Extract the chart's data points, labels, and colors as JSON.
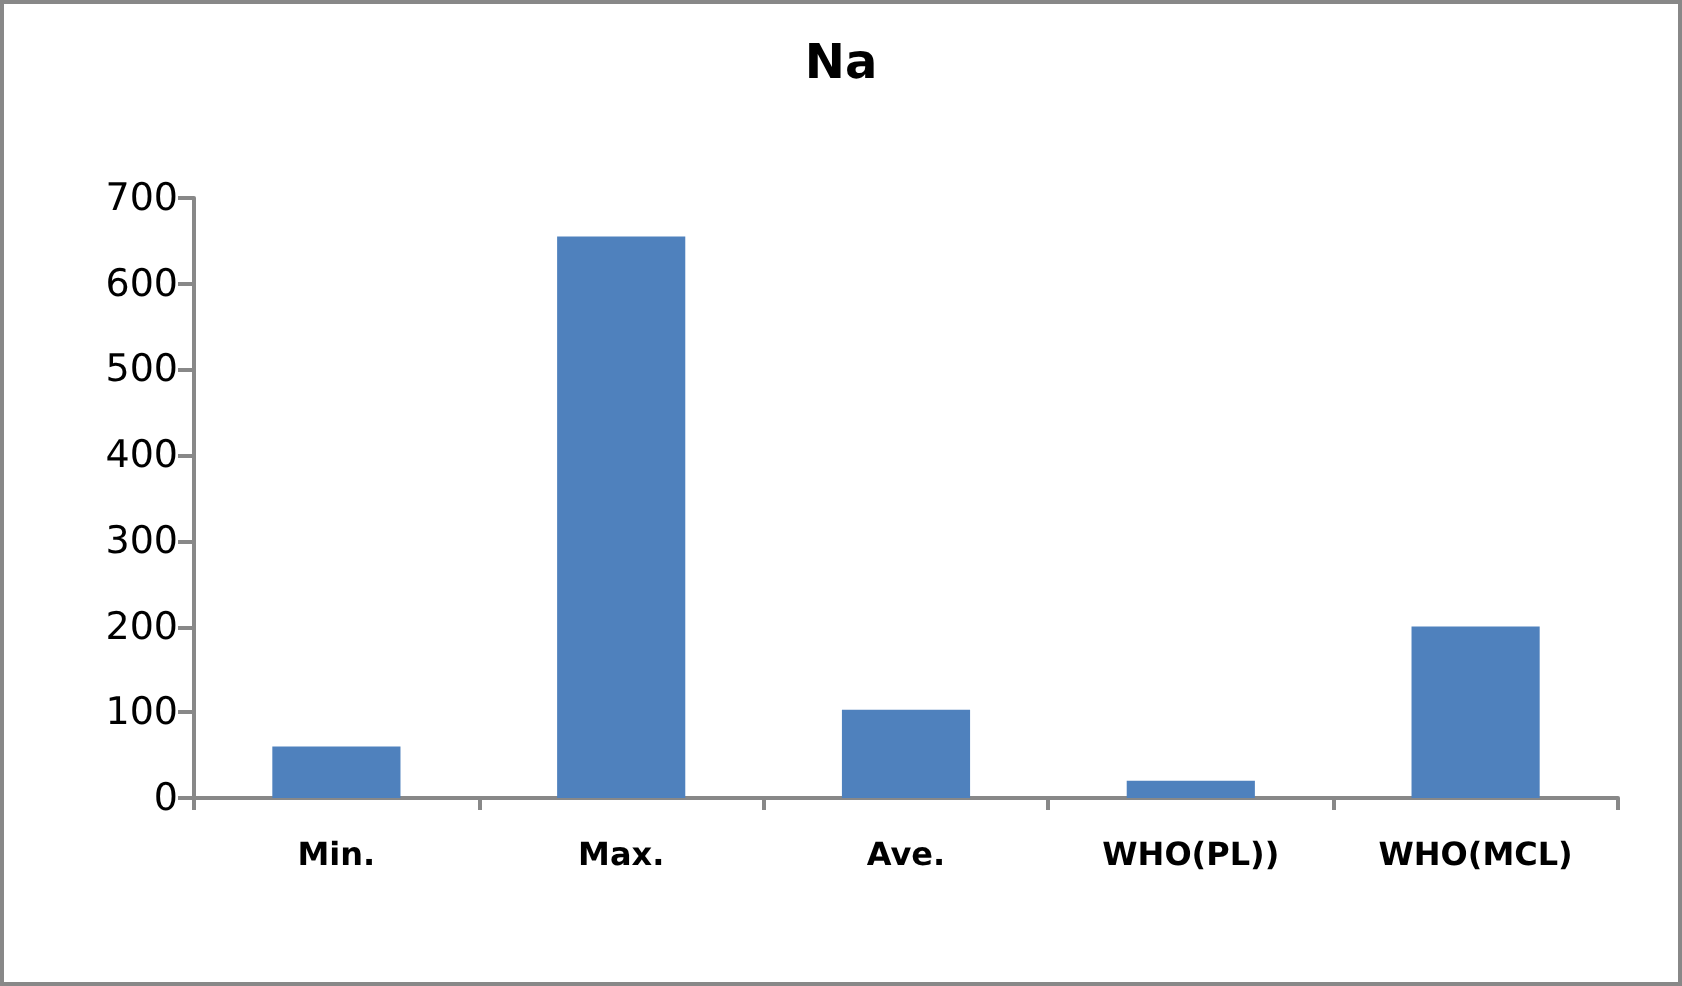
{
  "chart_data": {
    "type": "bar",
    "title": "Na",
    "categories": [
      "Min.",
      "Max.",
      "Ave.",
      "WHO(PL))",
      "WHO(MCL)"
    ],
    "values": [
      60,
      655,
      103,
      20,
      200
    ],
    "color": "#4f81bd",
    "ylim": [
      0,
      700
    ],
    "yticks": [
      0,
      100,
      200,
      300,
      400,
      500,
      600,
      700
    ],
    "grid": false
  }
}
